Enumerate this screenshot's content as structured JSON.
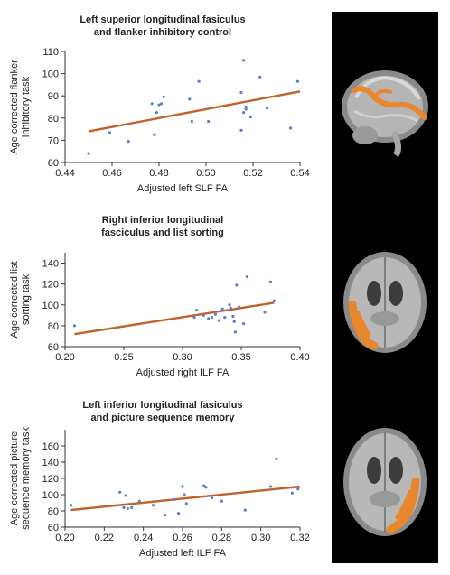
{
  "figure": {
    "brain_strip_color": "#000000",
    "tract_color": "#e8872b"
  },
  "chart_data": [
    {
      "type": "scatter",
      "title_line1": "Left superior longitudinal fasiculus",
      "title_line2": "and flanker inhibitory control",
      "xlabel": "Adjusted left SLF FA",
      "ylabel_line1": "Age corrected flanker",
      "ylabel_line2": "inhibitory task",
      "xlim": [
        0.44,
        0.54
      ],
      "ylim": [
        60,
        110
      ],
      "xticks": [
        0.44,
        0.46,
        0.48,
        0.5,
        0.52,
        0.54
      ],
      "xtick_labels": [
        "0.44",
        "0.46",
        "0.48",
        "0.50",
        "0.52",
        "0.54"
      ],
      "yticks": [
        60,
        70,
        80,
        90,
        100,
        110
      ],
      "ytick_labels": [
        "60",
        "70",
        "80",
        "90",
        "100",
        "110"
      ],
      "point_color": "#5b7fc7",
      "line_color": "#c0622a",
      "x": [
        0.45,
        0.459,
        0.467,
        0.477,
        0.478,
        0.479,
        0.48,
        0.481,
        0.482,
        0.493,
        0.494,
        0.497,
        0.501,
        0.515,
        0.515,
        0.516,
        0.516,
        0.517,
        0.517,
        0.519,
        0.523,
        0.526,
        0.536,
        0.539
      ],
      "y": [
        64,
        73.5,
        69.5,
        86.5,
        72.5,
        82.5,
        86,
        86.5,
        89.5,
        88.5,
        78.5,
        96.5,
        78.5,
        91.5,
        74.5,
        106,
        82.5,
        84,
        85,
        80.5,
        98.5,
        84.5,
        75.5,
        96.5
      ],
      "fit": {
        "x": [
          0.45,
          0.54
        ],
        "y": [
          74,
          92
        ]
      }
    },
    {
      "type": "scatter",
      "title_line1": "Right inferior longitudinal",
      "title_line2": "fasciculus and list sorting",
      "xlabel": "Adjusted right ILF FA",
      "ylabel_line1": "Age corrected list",
      "ylabel_line2": "sorting task",
      "xlim": [
        0.2,
        0.4
      ],
      "ylim": [
        60,
        150
      ],
      "xticks": [
        0.2,
        0.25,
        0.3,
        0.35,
        0.4
      ],
      "xtick_labels": [
        "0.20",
        "0.25",
        "0.30",
        "0.35",
        "0.40"
      ],
      "yticks": [
        60,
        80,
        100,
        120,
        140
      ],
      "ytick_labels": [
        "60",
        "80",
        "100",
        "120",
        "140"
      ],
      "point_color": "#5b7fc7",
      "line_color": "#c0622a",
      "x": [
        0.208,
        0.31,
        0.312,
        0.318,
        0.322,
        0.325,
        0.328,
        0.331,
        0.334,
        0.336,
        0.34,
        0.341,
        0.343,
        0.344,
        0.345,
        0.346,
        0.348,
        0.352,
        0.355,
        0.37,
        0.375,
        0.378
      ],
      "y": [
        80,
        88,
        95,
        90,
        87,
        88,
        91,
        85,
        96,
        88,
        100,
        97,
        89,
        84,
        74,
        119,
        98,
        82,
        127,
        93,
        122,
        104
      ],
      "fit": {
        "x": [
          0.208,
          0.378
        ],
        "y": [
          72,
          102
        ]
      }
    },
    {
      "type": "scatter",
      "title_line1": "Left inferior longitudinal fasiculus",
      "title_line2": "and picture sequence memory",
      "xlabel": "Adjusted left ILF FA",
      "ylabel_line1": "Age corrected picture",
      "ylabel_line2": "sequence memory task",
      "xlim": [
        0.2,
        0.32
      ],
      "ylim": [
        60,
        180
      ],
      "xticks": [
        0.2,
        0.22,
        0.24,
        0.26,
        0.28,
        0.3,
        0.32
      ],
      "xtick_labels": [
        "0.20",
        "0.22",
        "0.24",
        "0.26",
        "0.28",
        "0.30",
        "0.32"
      ],
      "yticks": [
        60,
        80,
        100,
        120,
        140,
        160
      ],
      "ytick_labels": [
        "60",
        "80",
        "100",
        "120",
        "140",
        "160"
      ],
      "point_color": "#5b7fc7",
      "line_color": "#c0622a",
      "x": [
        0.203,
        0.228,
        0.23,
        0.231,
        0.232,
        0.234,
        0.238,
        0.245,
        0.251,
        0.256,
        0.258,
        0.26,
        0.261,
        0.262,
        0.271,
        0.272,
        0.275,
        0.28,
        0.292,
        0.305,
        0.308,
        0.316,
        0.319
      ],
      "y": [
        87,
        103,
        84,
        99,
        83,
        84,
        92,
        87,
        75,
        94,
        77,
        110,
        100,
        89,
        111,
        109,
        96,
        92,
        81,
        110,
        144,
        102,
        107
      ],
      "fit": {
        "x": [
          0.203,
          0.32
        ],
        "y": [
          81,
          110
        ]
      }
    }
  ]
}
